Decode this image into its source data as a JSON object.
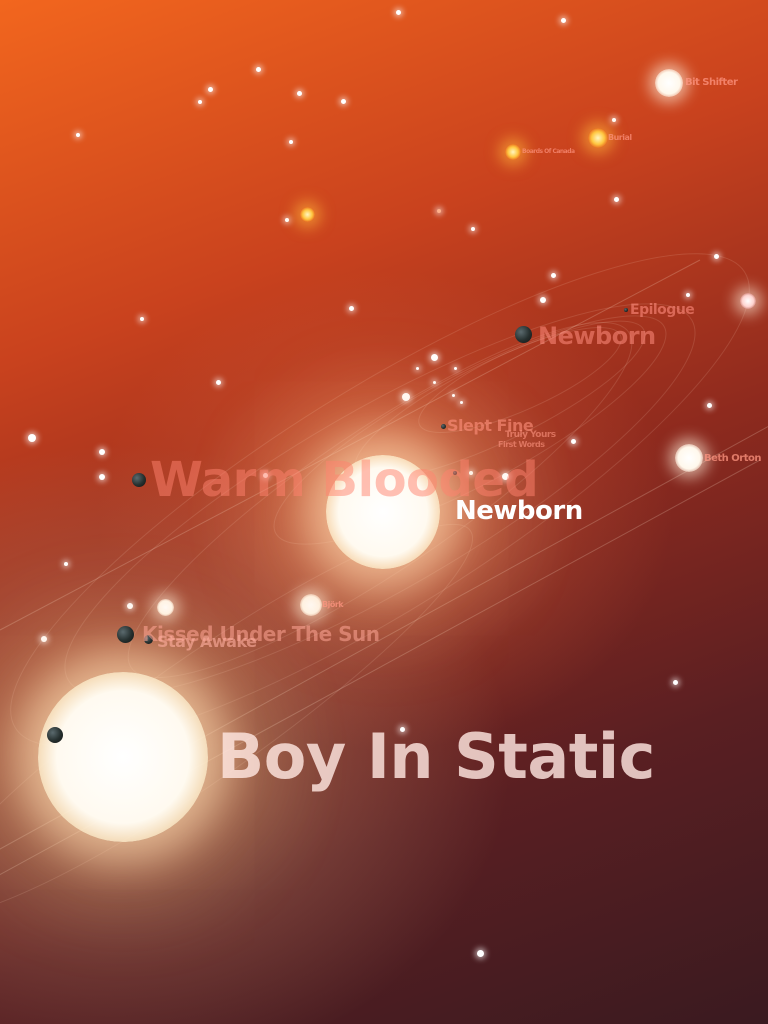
{
  "colors": {
    "background_top": "#f2661e",
    "background_bottom": "#3a1a20",
    "label_primary": "#ffffff",
    "label_faint": "#ff9682"
  },
  "labels": {
    "focus_artist": "Boy In Static",
    "focus_album": "Newborn",
    "warm_blooded": "Warm Blooded",
    "newborn_far": "Newborn",
    "slept_fine": "Slept Fine",
    "truly_yours": "Truly Yours",
    "first_words": "First Words",
    "epilogue": "Epilogue",
    "kissed_under_the_sun": "Kissed Under The Sun",
    "stay_awake": "Stay Awake",
    "bit_shifter": "Bit Shifter",
    "burial": "Burial",
    "boards_of_canada": "Boards Of Canada",
    "beth_orton": "Beth Orton",
    "bjork": "Björk"
  },
  "icons": {
    "sun": "glowing-sun-icon",
    "planet": "planet-icon",
    "star": "star-dot-icon"
  }
}
